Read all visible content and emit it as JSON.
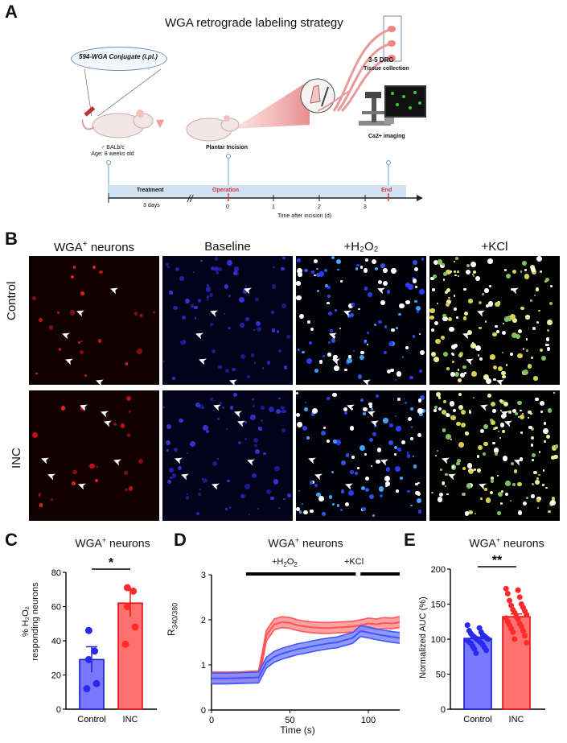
{
  "panel_a": {
    "letter": "A",
    "title": "WGA retrograde labeling strategy",
    "injection_label": "594-WGA Conjugate  (i.pl.)",
    "mouse_label": "♂ BALb/c",
    "age_label": "Age: 8 weeks old",
    "incision_label": "Plantar Incision",
    "drg_label": "3-5 DRG",
    "tissue_label": "Tissue collection",
    "imaging_label": "Ca2+ imaging",
    "timeline": {
      "treatment": "Treatment",
      "treatment_days": "3 days",
      "operation": "Operation",
      "end": "End",
      "ticks": [
        "0",
        "1",
        "2",
        "3"
      ],
      "axis_label": "Time after incision (d)",
      "break_mark": "//"
    }
  },
  "panel_b": {
    "letter": "B",
    "columns": [
      "WGA",
      "Baseline",
      "+H₂O₂",
      "+KCl"
    ],
    "col0_sup": "+",
    "col0_suffix": " neurons",
    "rows": [
      "Control",
      "INC"
    ]
  },
  "panel_c": {
    "letter": "C",
    "title": "WGA",
    "title_sup": "+",
    "title_suffix": " neurons",
    "ylabel_line1": "% H₂O₂",
    "ylabel_line2": "responding neurons",
    "significance": "*",
    "colors": {
      "control": "#6b6bff",
      "inc": "#ff6b6b",
      "control_edge": "#1a1acc",
      "inc_edge": "#e01010"
    }
  },
  "panel_d": {
    "letter": "D",
    "title": "WGA",
    "title_sup": "+",
    "title_suffix": " neurons",
    "ylabel": "R",
    "ylabel_sub": "340/380",
    "xlabel": "Time (s)",
    "h2o2_label": "+H",
    "h2o2_sub": "2",
    "h2o2_mid": "O",
    "h2o2_sub2": "2",
    "kcl_label": "+KCl"
  },
  "panel_e": {
    "letter": "E",
    "title": "WGA",
    "title_sup": "+",
    "title_suffix": " neurons",
    "ylabel": "Normalized AUC (%)",
    "significance": "**"
  },
  "chart_data": [
    {
      "type": "bar",
      "panel": "C",
      "categories": [
        "Control",
        "INC"
      ],
      "values": [
        29,
        62
      ],
      "sem": [
        7.5,
        8
      ],
      "points": [
        [
          46,
          34,
          29,
          15,
          12
        ],
        [
          71,
          69,
          60,
          48,
          38
        ]
      ],
      "title": "WGA+ neurons",
      "ylabel": "% H₂O₂ responding neurons",
      "ylim": [
        0,
        80
      ],
      "yticks": [
        0,
        20,
        40,
        60,
        80
      ]
    },
    {
      "type": "line",
      "panel": "D",
      "xlabel": "Time (s)",
      "ylabel": "R340/380",
      "xlim": [
        0,
        120
      ],
      "ylim": [
        0,
        3
      ],
      "xticks": [
        0,
        50,
        100
      ],
      "yticks": [
        0,
        1,
        2,
        3
      ],
      "series": [
        {
          "color": "#ff5555",
          "x": [
            0,
            10,
            20,
            30,
            32,
            35,
            40,
            45,
            50,
            55,
            60,
            65,
            70,
            75,
            80,
            85,
            90,
            95,
            100,
            105,
            110,
            115,
            120
          ],
          "y": [
            0.72,
            0.72,
            0.73,
            0.75,
            1.1,
            1.65,
            1.9,
            1.95,
            1.93,
            1.88,
            1.85,
            1.83,
            1.82,
            1.82,
            1.83,
            1.84,
            1.85,
            1.88,
            1.92,
            1.9,
            1.93,
            1.92,
            1.95
          ],
          "err": 0.12
        },
        {
          "color": "#4455ff",
          "x": [
            0,
            10,
            20,
            30,
            32,
            35,
            40,
            45,
            50,
            55,
            60,
            65,
            70,
            75,
            80,
            85,
            90,
            95,
            100,
            105,
            110,
            115,
            120
          ],
          "y": [
            0.7,
            0.7,
            0.71,
            0.72,
            0.85,
            1.05,
            1.18,
            1.25,
            1.3,
            1.35,
            1.38,
            1.42,
            1.45,
            1.48,
            1.5,
            1.55,
            1.6,
            1.75,
            1.72,
            1.68,
            1.65,
            1.62,
            1.6
          ],
          "err": 0.12
        }
      ]
    },
    {
      "type": "bar",
      "panel": "E",
      "categories": [
        "Control",
        "INC"
      ],
      "values": [
        101,
        132
      ],
      "sem": [
        2,
        4
      ],
      "points": [
        [
          120,
          116,
          112,
          110,
          108,
          106,
          105,
          104,
          103,
          102,
          101,
          100,
          99,
          98,
          97,
          96,
          95,
          94,
          92,
          90,
          88,
          86,
          84,
          80
        ],
        [
          172,
          170,
          165,
          160,
          155,
          150,
          148,
          145,
          142,
          140,
          138,
          135,
          132,
          130,
          128,
          125,
          122,
          120,
          118,
          115,
          112,
          110,
          105,
          100,
          95
        ]
      ],
      "ylabel": "Normalized AUC (%)",
      "ylim": [
        0,
        200
      ],
      "yticks": [
        0,
        50,
        100,
        150,
        200
      ]
    }
  ]
}
